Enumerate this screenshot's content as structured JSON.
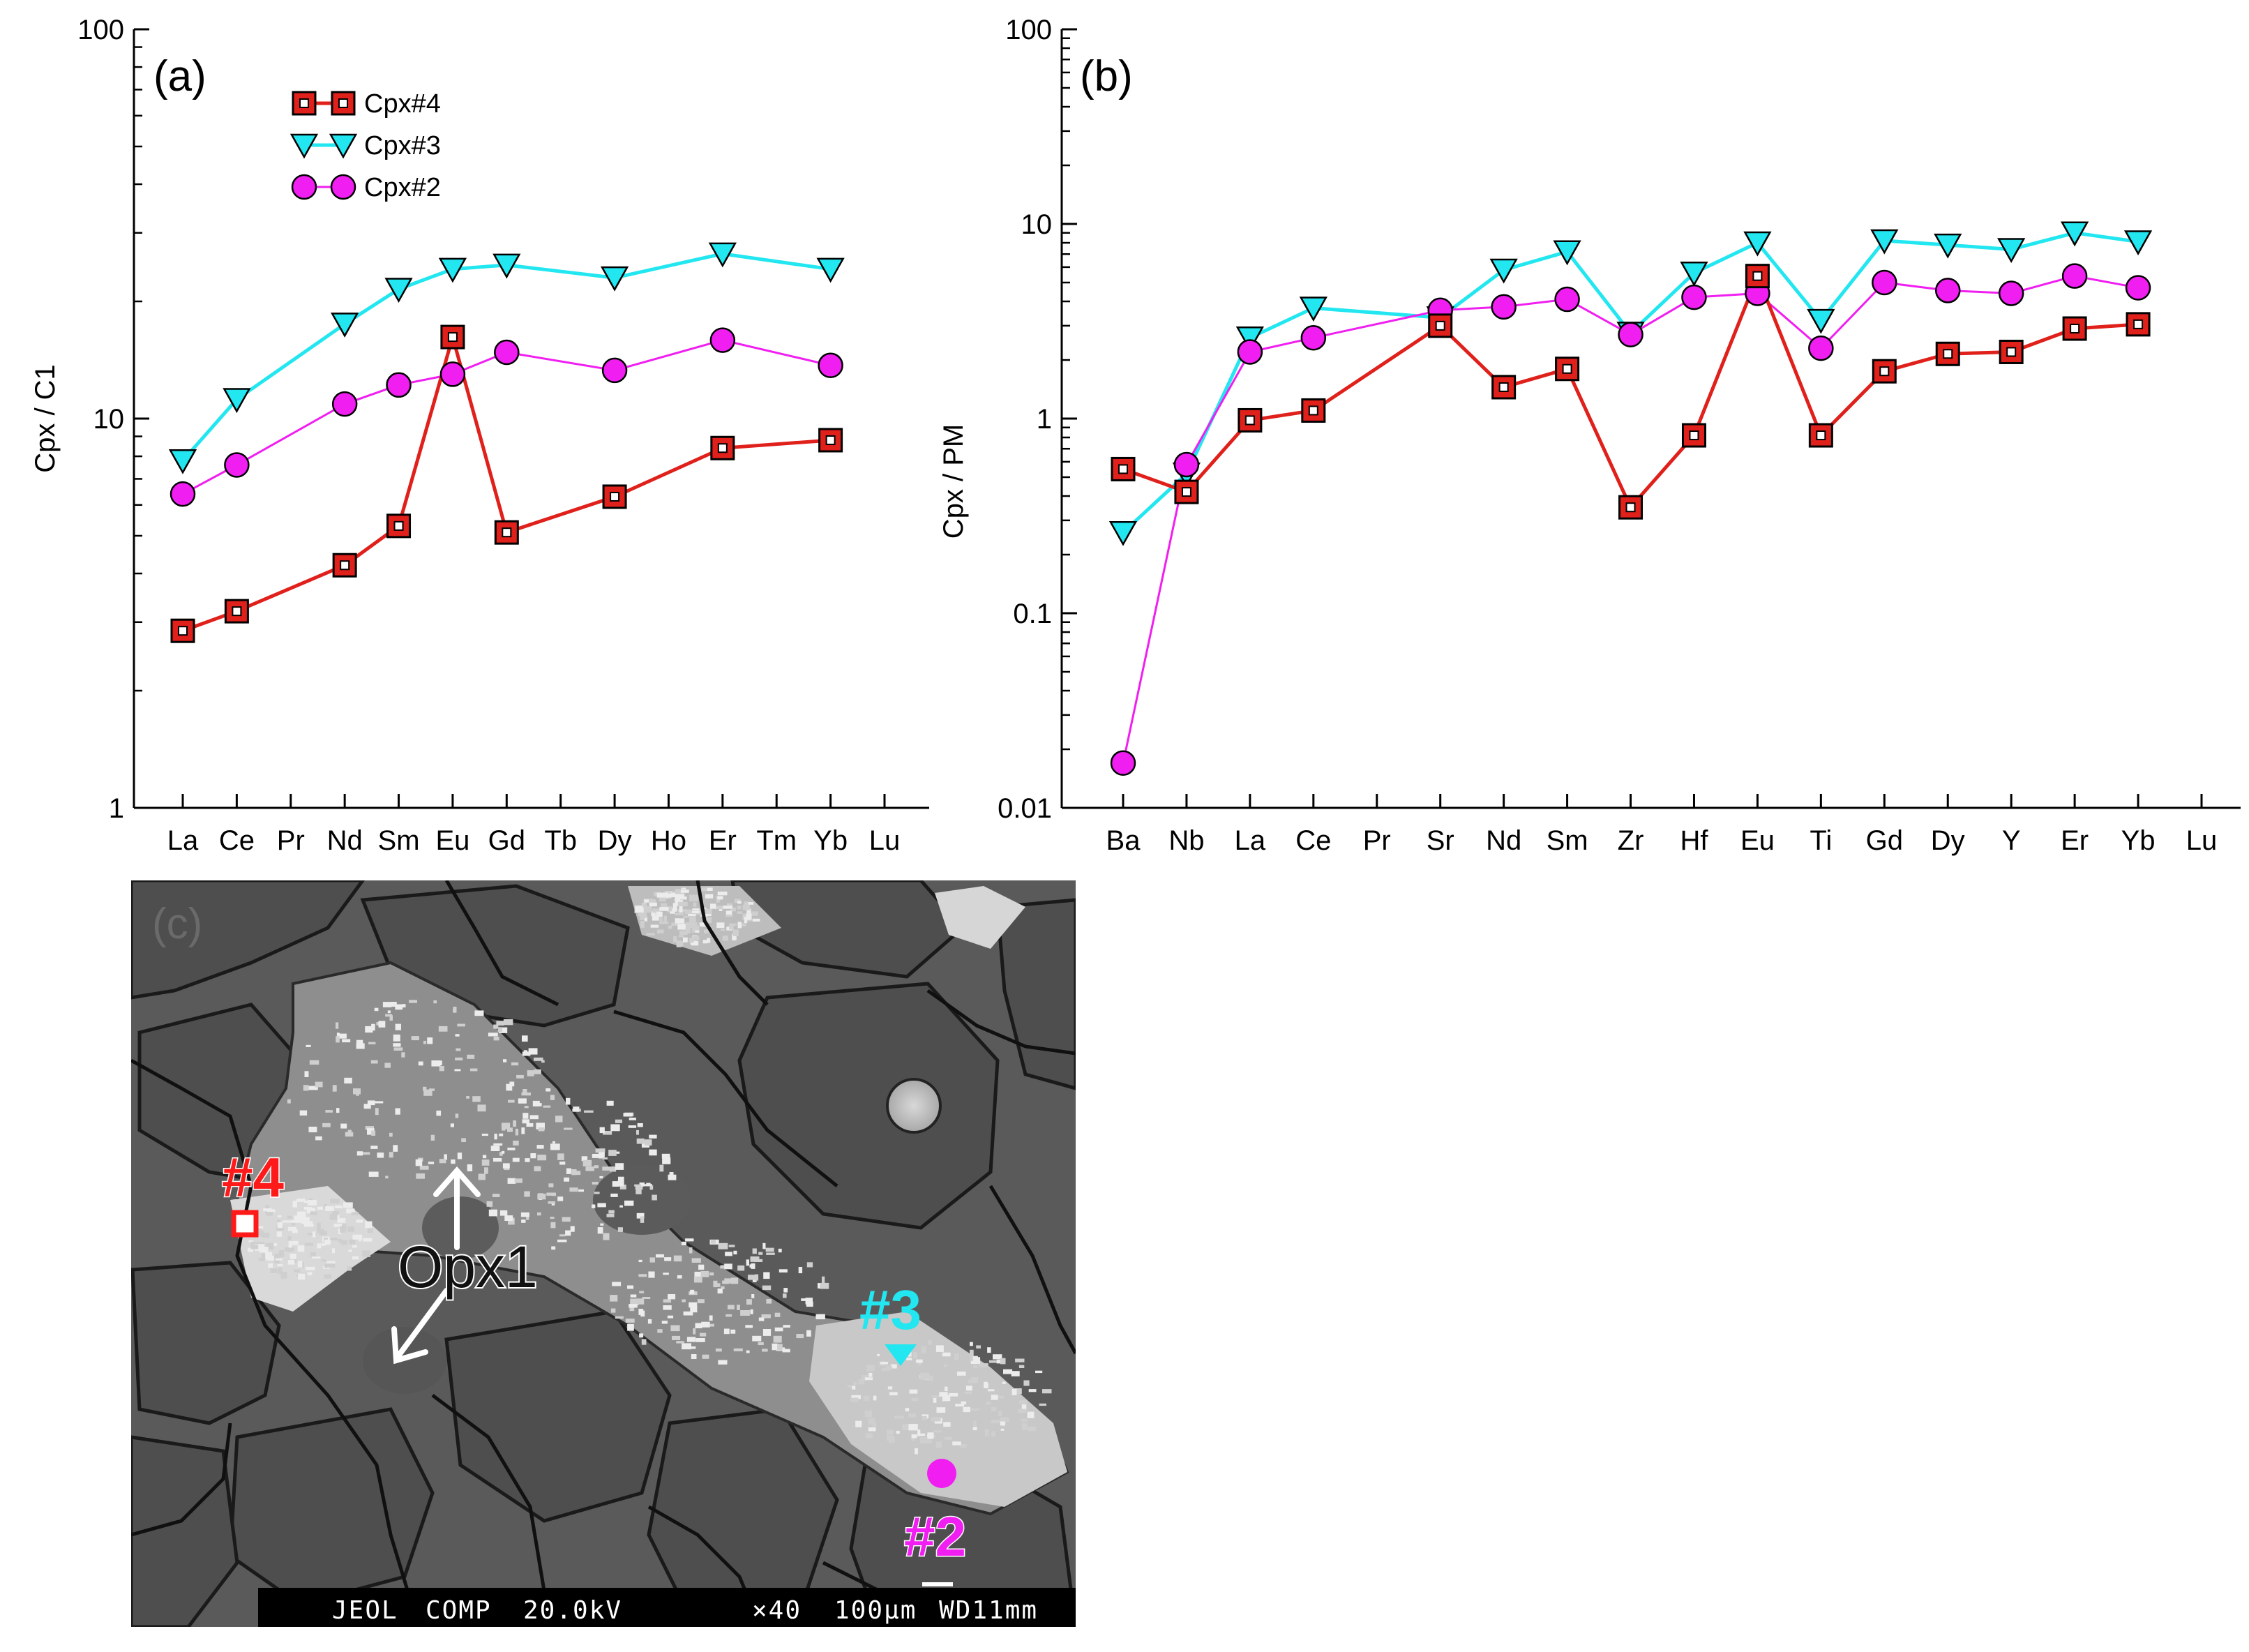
{
  "chart_data": [
    {
      "panel": "(a)",
      "type": "line",
      "yscale": "log",
      "ylabel": "Cpx / C1",
      "ylim": [
        1,
        100
      ],
      "yticks": [
        "1",
        "10",
        "100"
      ],
      "categories": [
        "La",
        "Ce",
        "Pr",
        "Nd",
        "Sm",
        "Eu",
        "Gd",
        "Tb",
        "Dy",
        "Ho",
        "Er",
        "Tm",
        "Yb",
        "Lu"
      ],
      "legend": [
        "Cpx#4",
        "Cpx#3",
        "Cpx#2"
      ],
      "series": [
        {
          "name": "Cpx#4",
          "color": "#e0201b",
          "marker": "square-dot",
          "values": [
            2.85,
            3.2,
            null,
            4.2,
            5.3,
            16.2,
            5.1,
            null,
            6.3,
            null,
            8.4,
            null,
            8.8,
            null
          ]
        },
        {
          "name": "Cpx#3",
          "color": "#22e6f0",
          "marker": "triangle-down",
          "values": [
            7.8,
            11.2,
            null,
            17.5,
            21.5,
            24.2,
            24.8,
            null,
            23.0,
            null,
            26.5,
            null,
            24.2,
            null
          ]
        },
        {
          "name": "Cpx#2",
          "color": "#f01ef0",
          "marker": "circle",
          "values": [
            6.4,
            7.6,
            null,
            10.9,
            12.2,
            13.0,
            14.8,
            null,
            13.3,
            null,
            15.9,
            null,
            13.7,
            null
          ]
        }
      ]
    },
    {
      "panel": "(b)",
      "type": "line",
      "yscale": "log",
      "ylabel": "Cpx / PM",
      "ylim": [
        0.01,
        100
      ],
      "yticks": [
        "0.01",
        "0.1",
        "1",
        "10",
        "100"
      ],
      "categories": [
        "Ba",
        "Nb",
        "La",
        "Ce",
        "Pr",
        "Sr",
        "Nd",
        "Sm",
        "Zr",
        "Hf",
        "Eu",
        "Ti",
        "Gd",
        "Dy",
        "Y",
        "Er",
        "Yb",
        "Lu"
      ],
      "series": [
        {
          "name": "Cpx#4",
          "color": "#e0201b",
          "marker": "square-dot",
          "values": [
            0.55,
            0.42,
            0.98,
            1.1,
            null,
            3.0,
            1.45,
            1.8,
            0.35,
            0.82,
            5.4,
            0.82,
            1.75,
            2.15,
            2.2,
            2.9,
            3.05,
            null
          ]
        },
        {
          "name": "Cpx#3",
          "color": "#22e6f0",
          "marker": "triangle-down",
          "values": [
            0.26,
            0.52,
            2.6,
            3.7,
            null,
            3.3,
            5.8,
            7.2,
            2.75,
            5.6,
            8.0,
            3.2,
            8.2,
            7.8,
            7.4,
            9.0,
            8.1,
            null
          ]
        },
        {
          "name": "Cpx#2",
          "color": "#f01ef0",
          "marker": "circle",
          "values": [
            0.017,
            0.58,
            2.2,
            2.6,
            null,
            3.6,
            3.75,
            4.1,
            2.7,
            4.2,
            4.4,
            2.3,
            5.0,
            4.55,
            4.4,
            5.4,
            4.7,
            null
          ]
        }
      ]
    }
  ],
  "sem_image": {
    "panel_label": "(c)",
    "labels": {
      "spot4": "#4",
      "spot3": "#3",
      "spot2": "#2",
      "opx": "Opx1"
    },
    "colors": {
      "spot4": "#ff1a1a",
      "spot3": "#22e6f0",
      "spot2": "#f01ef0",
      "opx_arrow": "#ffffff"
    },
    "scale_bar": [
      "JEOL",
      "COMP",
      "20.0kV",
      "×40",
      "100μm",
      "WD11mm"
    ]
  }
}
